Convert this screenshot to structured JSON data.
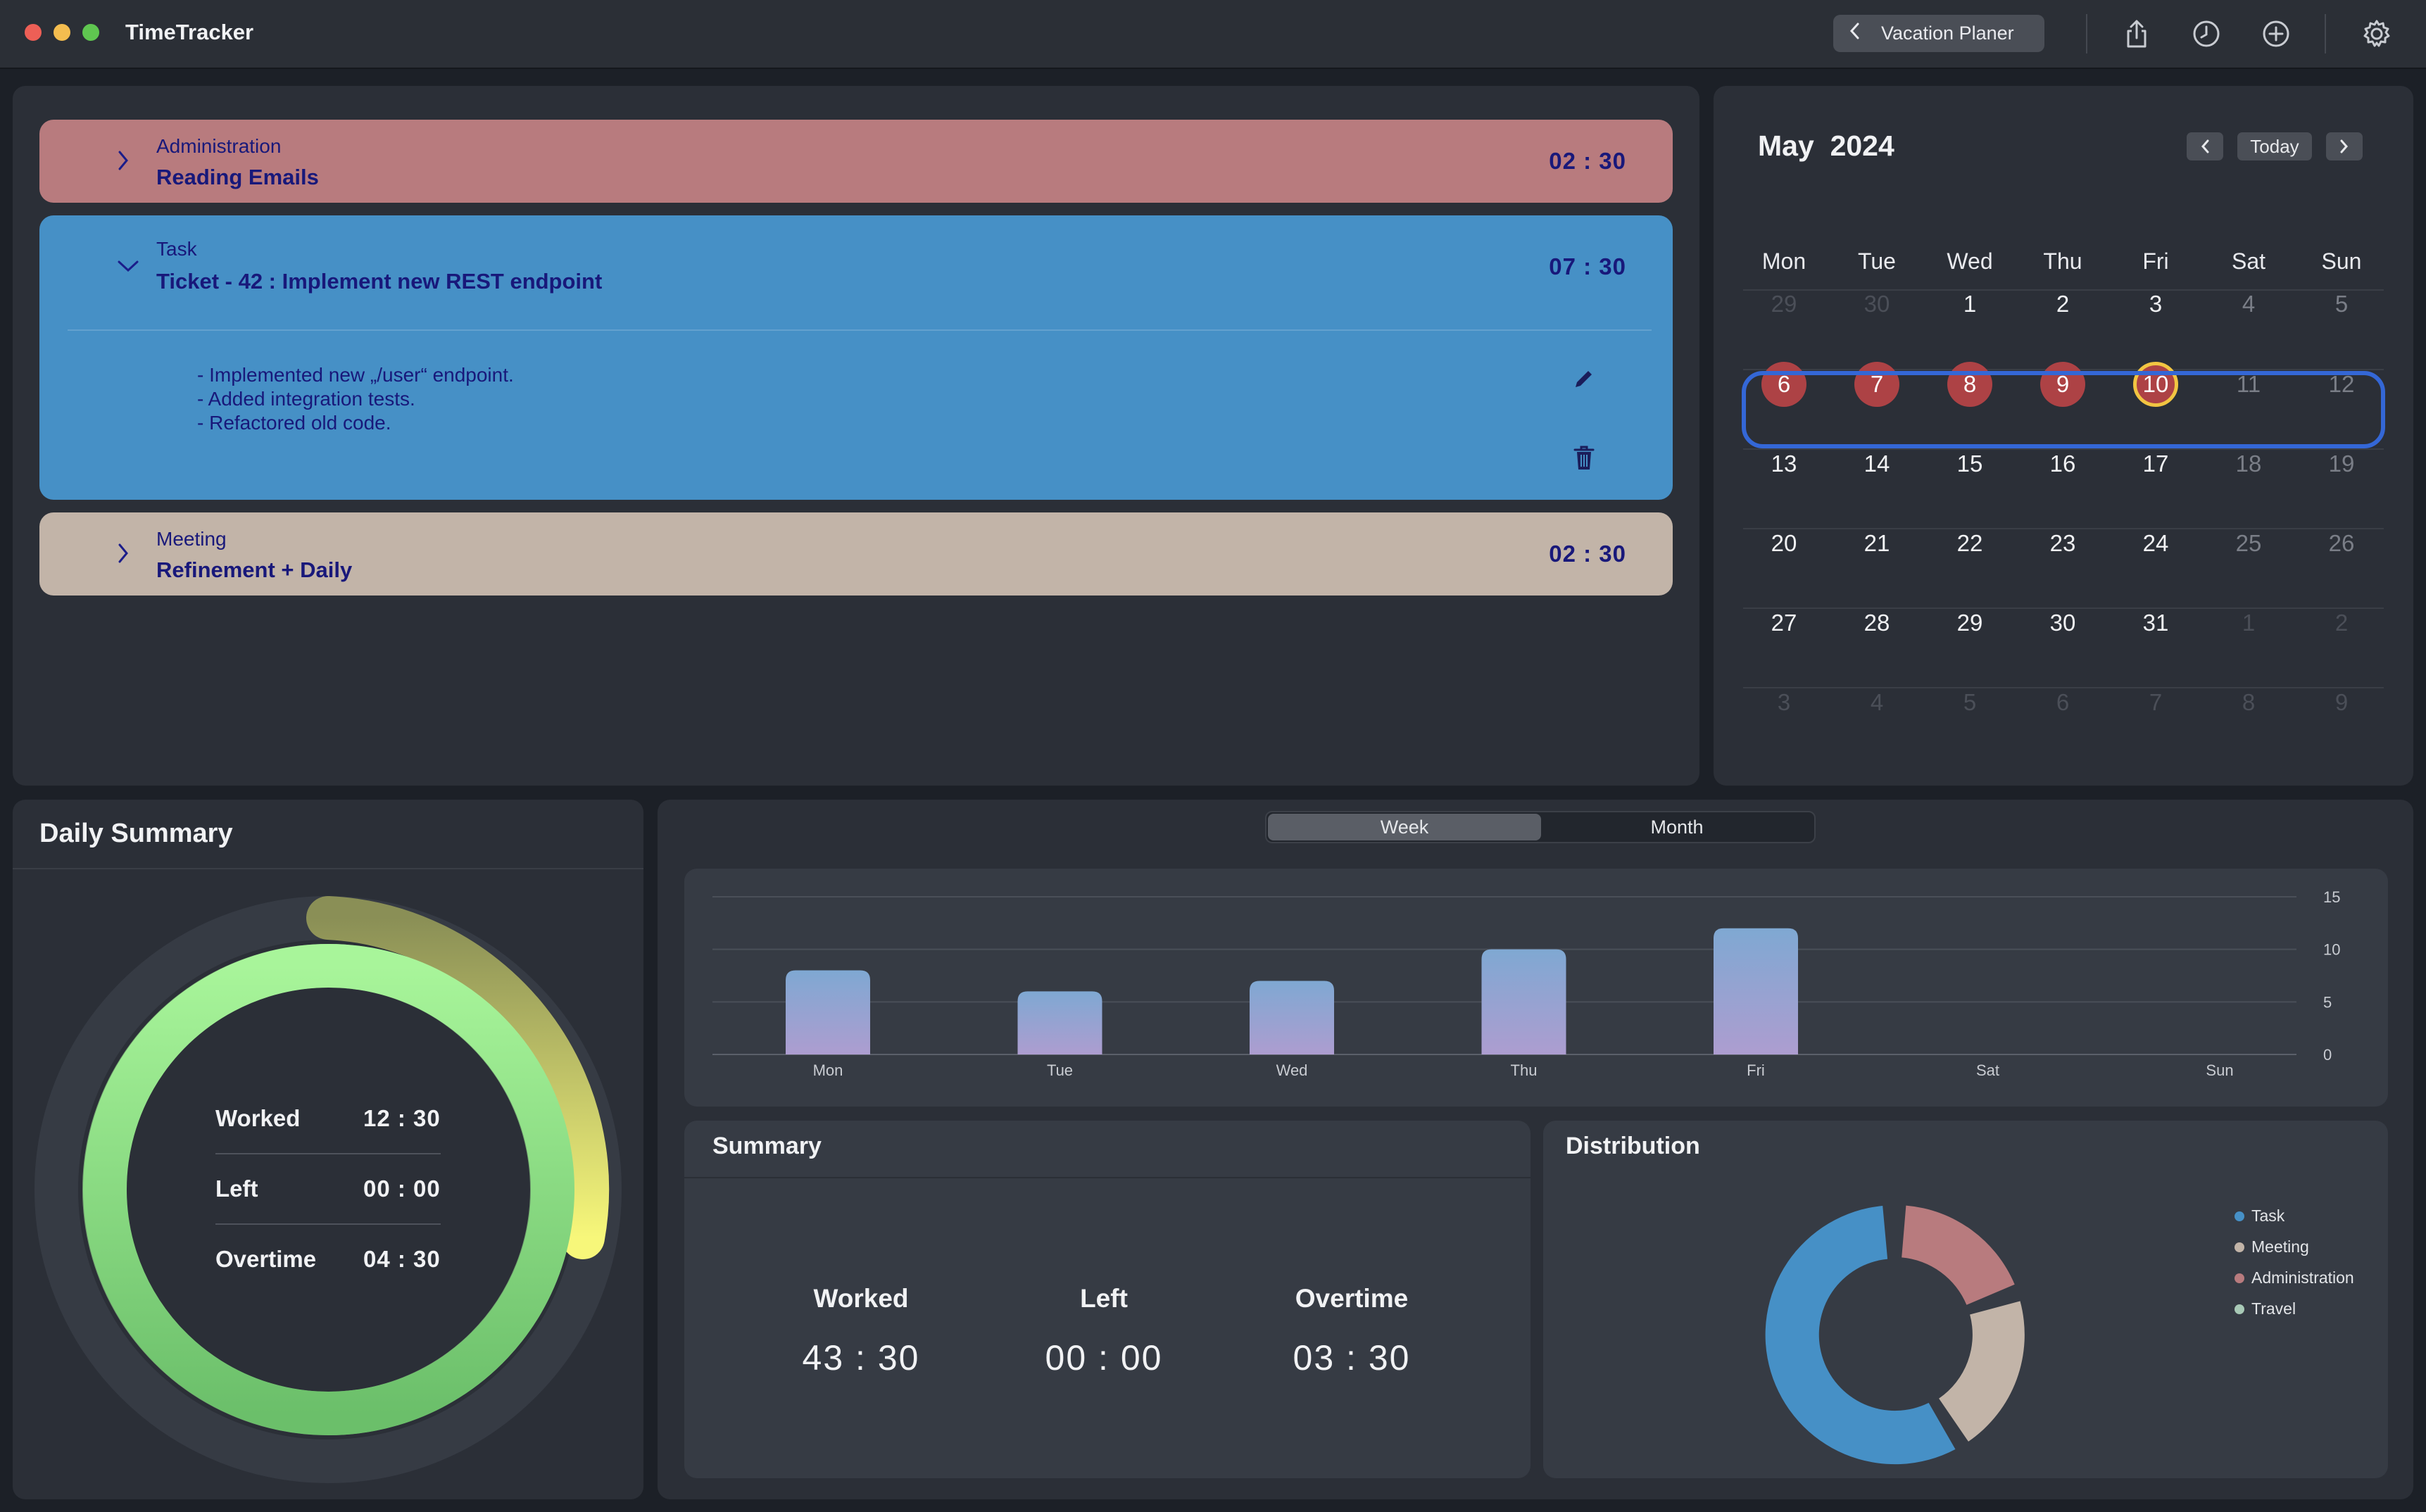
{
  "app": {
    "title": "TimeTracker"
  },
  "toolbar": {
    "back_label": "Vacation Planer",
    "icons": [
      "share-icon",
      "clock-icon",
      "add-icon",
      "gear-icon"
    ]
  },
  "colors": {
    "administration": "#b87b7e",
    "task": "#4690c6",
    "meeting": "#c2b4a8",
    "travel": "#a8c9b6",
    "selected_day": "#ad4245",
    "today_ring": "#f2c542",
    "week_outline": "#3467d6"
  },
  "entries": [
    {
      "category": "Administration",
      "title": "Reading Emails",
      "duration": "02 : 30",
      "expanded": false
    },
    {
      "category": "Task",
      "title": "Ticket - 42 : Implement new REST endpoint",
      "duration": "07 : 30",
      "expanded": true,
      "notes": [
        "- Implemented new „/user“ endpoint.",
        "- Added integration tests.",
        "- Refactored old code."
      ]
    },
    {
      "category": "Meeting",
      "title": "Refinement + Daily",
      "duration": "02 : 30",
      "expanded": false
    }
  ],
  "calendar": {
    "month": "May",
    "year": "2024",
    "today_label": "Today",
    "weekdays": [
      "Mon",
      "Tue",
      "Wed",
      "Thu",
      "Fri",
      "Sat",
      "Sun"
    ],
    "weeks": [
      [
        "29",
        "30",
        "1",
        "2",
        "3",
        "4",
        "5"
      ],
      [
        "6",
        "7",
        "8",
        "9",
        "10",
        "11",
        "12"
      ],
      [
        "13",
        "14",
        "15",
        "16",
        "17",
        "18",
        "19"
      ],
      [
        "20",
        "21",
        "22",
        "23",
        "24",
        "25",
        "26"
      ],
      [
        "27",
        "28",
        "29",
        "30",
        "31",
        "1",
        "2"
      ],
      [
        "3",
        "4",
        "5",
        "6",
        "7",
        "8",
        "9"
      ]
    ]
  },
  "daily_summary": {
    "title": "Daily Summary",
    "worked_label": "Worked",
    "worked": "12 : 30",
    "left_label": "Left",
    "left": "00 : 00",
    "overtime_label": "Overtime",
    "overtime": "04 : 30"
  },
  "tabs": {
    "week": "Week",
    "month": "Month",
    "active": "Week"
  },
  "chart_data": {
    "type": "bar",
    "title": "",
    "xlabel": "",
    "ylabel": "",
    "categories": [
      "Mon",
      "Tue",
      "Wed",
      "Thu",
      "Fri",
      "Sat",
      "Sun"
    ],
    "values": [
      8,
      6,
      7,
      10,
      12,
      0,
      0
    ],
    "ylim": [
      0,
      15
    ],
    "yticks": [
      "0",
      "5",
      "10",
      "15"
    ],
    "grid": true
  },
  "summary": {
    "title": "Summary",
    "worked_label": "Worked",
    "worked": "43 : 30",
    "left_label": "Left",
    "left": "00 : 00",
    "overtime_label": "Overtime",
    "overtime": "03 : 30"
  },
  "distribution": {
    "title": "Distribution",
    "legend": [
      "Task",
      "Meeting",
      "Administration",
      "Travel"
    ]
  }
}
